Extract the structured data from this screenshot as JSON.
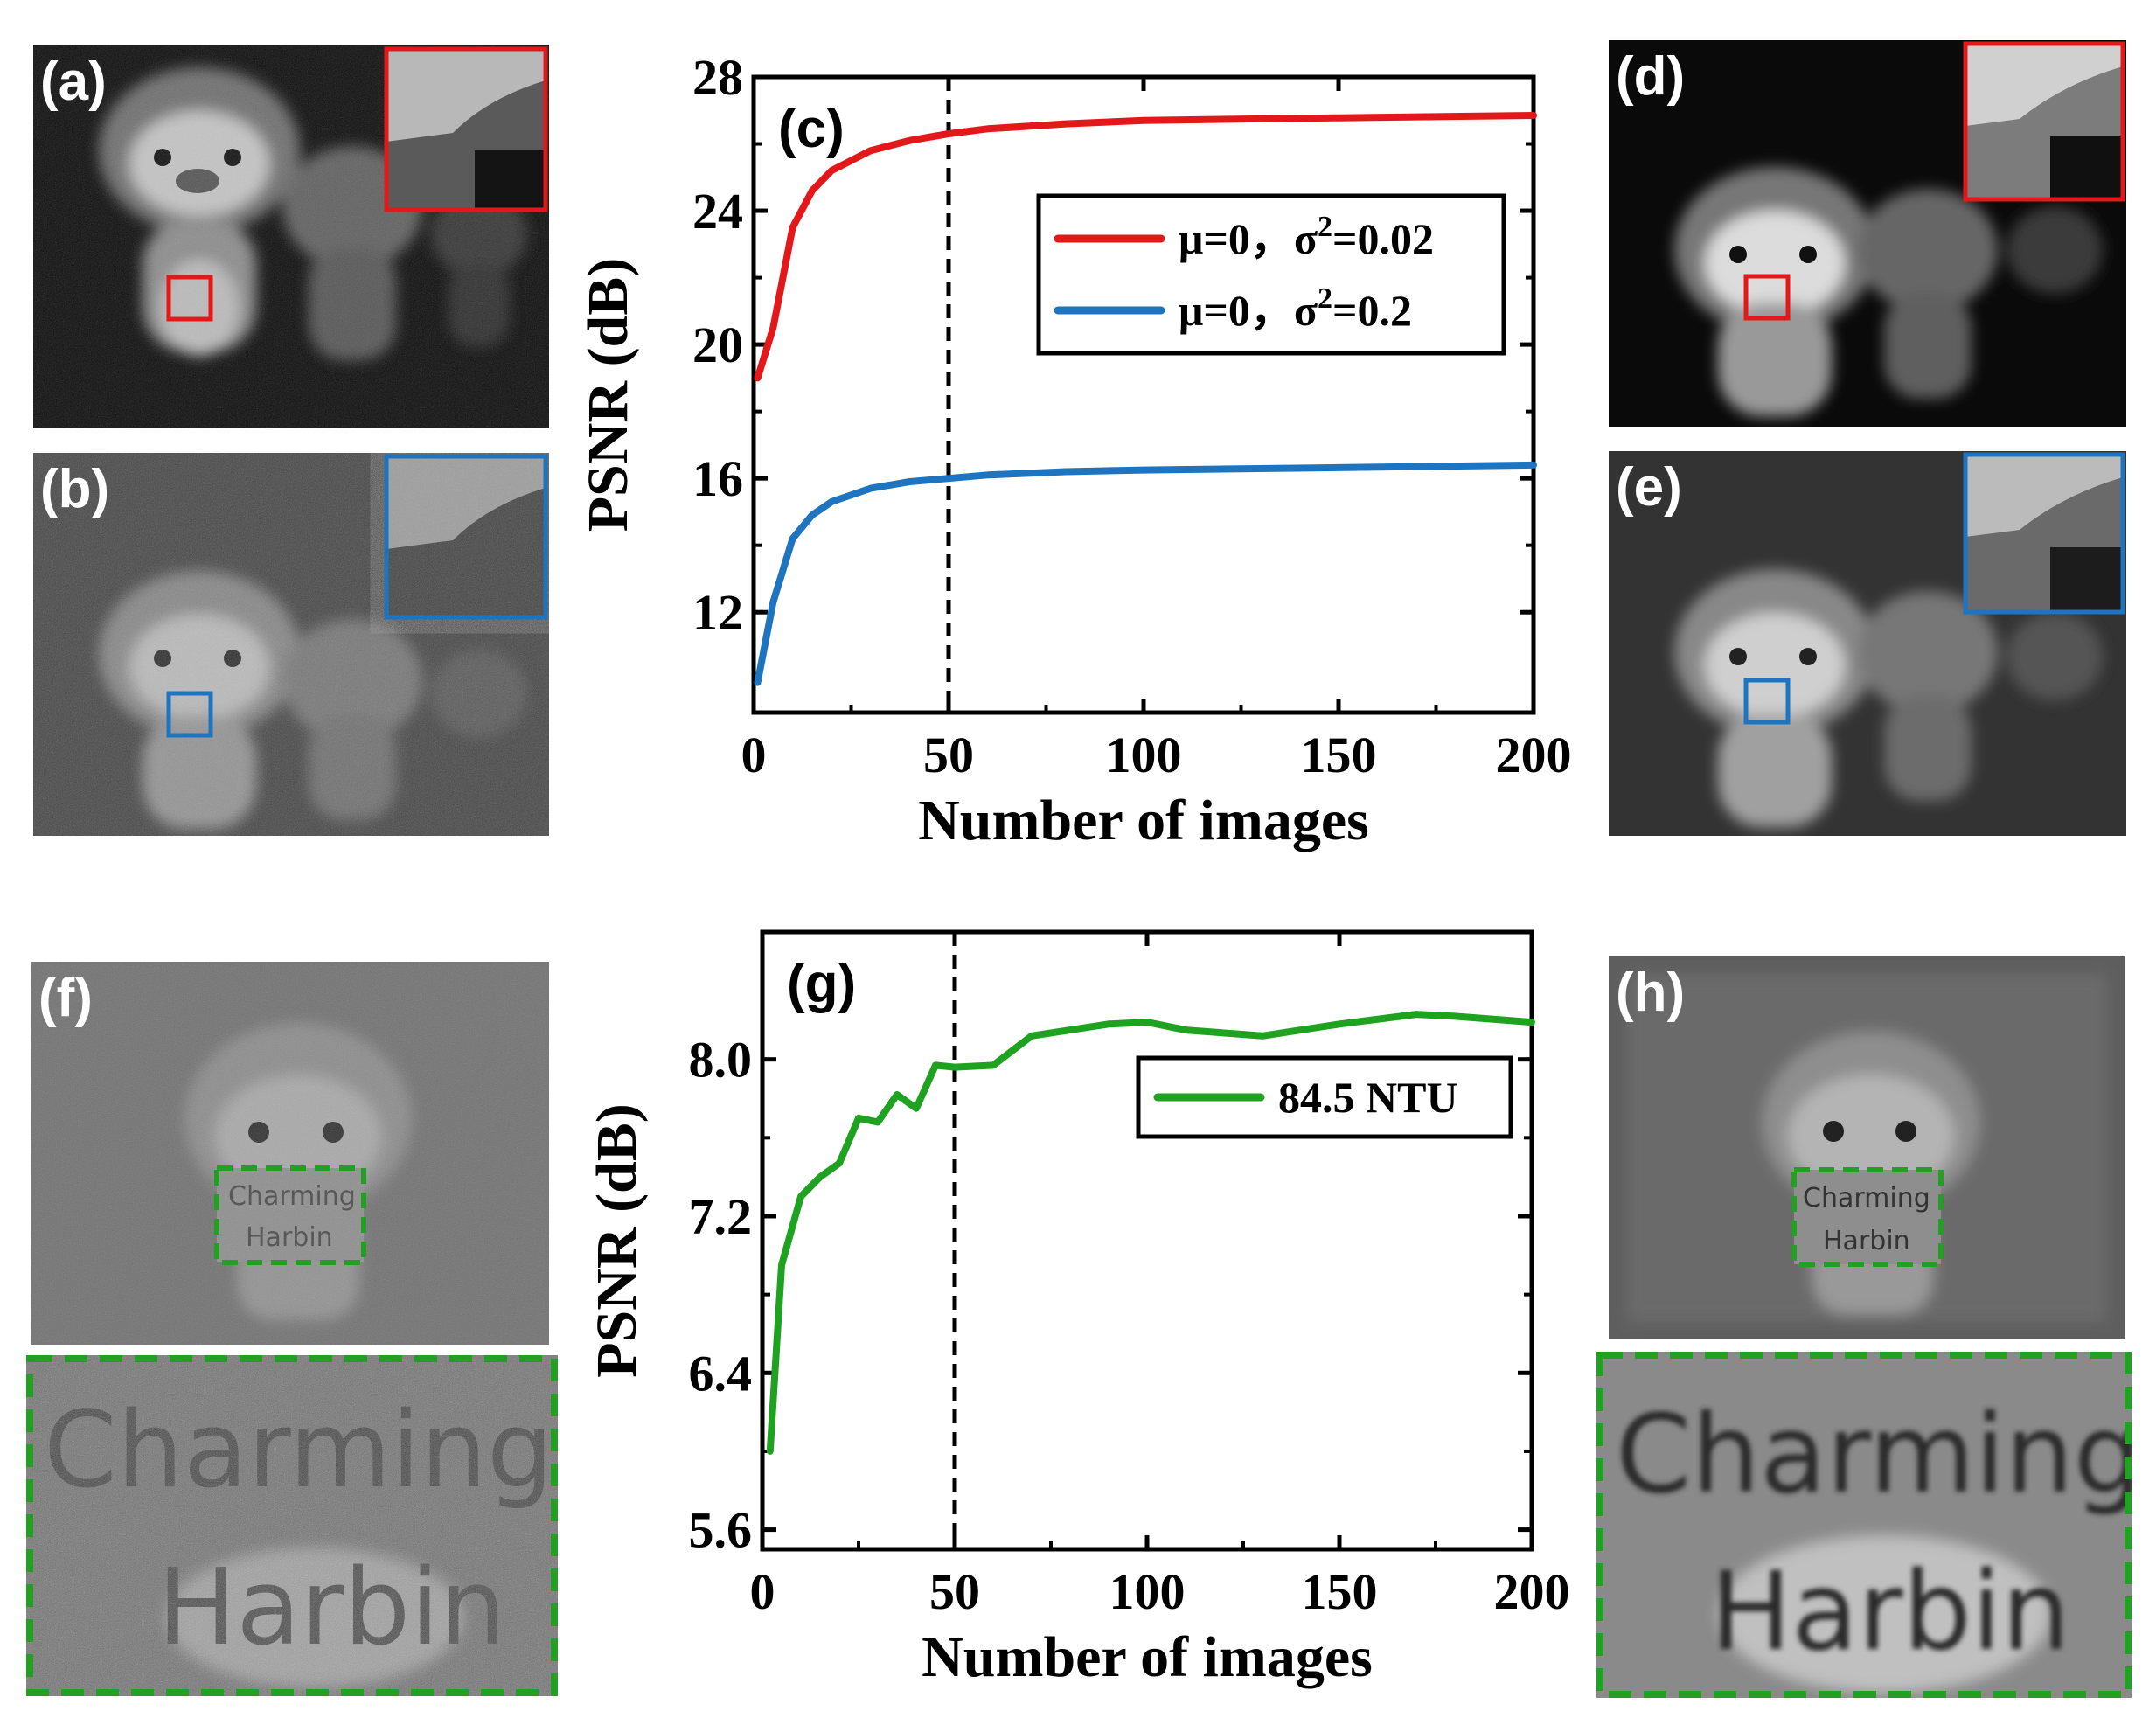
{
  "panels": {
    "a": "(a)",
    "b": "(b)",
    "d": "(d)",
    "e": "(e)",
    "f": "(f)",
    "h": "(h)",
    "sign_line1": "Charming",
    "sign_line2": "Harbin"
  },
  "colors": {
    "red": "#e3181a",
    "blue": "#1f74c0",
    "green": "#1fa21f",
    "zoom_green": "#23a023"
  },
  "chart_data": [
    {
      "type": "line",
      "panel_label": "(c)",
      "xlabel": "Number of images",
      "ylabel": "PSNR (dB)",
      "xlim": [
        0,
        200
      ],
      "ylim": [
        9,
        28
      ],
      "xticks": [
        0,
        50,
        100,
        150,
        200
      ],
      "yticks": [
        12,
        16,
        20,
        24,
        28
      ],
      "vline_x": 50,
      "legend_position": "top-right",
      "series": [
        {
          "name": "μ=0，σ²=0.02",
          "name_prefix": "μ=0，σ",
          "name_sup": "2",
          "name_suffix": "=0.02",
          "color": "#e3181a",
          "x": [
            1,
            5,
            10,
            15,
            20,
            30,
            40,
            50,
            60,
            80,
            100,
            150,
            200
          ],
          "y": [
            19.0,
            20.5,
            23.5,
            24.6,
            25.2,
            25.8,
            26.1,
            26.3,
            26.45,
            26.6,
            26.7,
            26.78,
            26.85
          ]
        },
        {
          "name": "μ=0，σ²=0.2",
          "name_prefix": "μ=0，σ",
          "name_sup": "2",
          "name_suffix": "=0.2",
          "color": "#1f74c0",
          "x": [
            1,
            5,
            10,
            15,
            20,
            30,
            40,
            50,
            60,
            80,
            100,
            150,
            200
          ],
          "y": [
            9.9,
            12.3,
            14.2,
            14.9,
            15.3,
            15.7,
            15.9,
            16.0,
            16.1,
            16.2,
            16.25,
            16.32,
            16.4
          ]
        }
      ]
    },
    {
      "type": "line",
      "panel_label": "(g)",
      "xlabel": "Number of images",
      "ylabel": "PSNR (dB)",
      "xlim": [
        0,
        200
      ],
      "ylim": [
        5.5,
        8.65
      ],
      "xticks": [
        0,
        50,
        100,
        150,
        200
      ],
      "yticks": [
        5.6,
        6.4,
        7.2,
        8.0
      ],
      "ytick_labels": [
        "5.6",
        "6.4",
        "7.2",
        "8.0"
      ],
      "vline_x": 50,
      "legend_position": "top-right",
      "series": [
        {
          "name": "84.5 NTU",
          "color": "#1fa21f",
          "x": [
            2,
            5,
            10,
            15,
            20,
            25,
            30,
            35,
            40,
            45,
            50,
            60,
            70,
            90,
            100,
            110,
            130,
            150,
            170,
            180,
            200
          ],
          "y": [
            6.0,
            6.95,
            7.3,
            7.4,
            7.47,
            7.7,
            7.68,
            7.82,
            7.75,
            7.97,
            7.96,
            7.97,
            8.12,
            8.18,
            8.19,
            8.15,
            8.12,
            8.18,
            8.23,
            8.22,
            8.19
          ]
        }
      ]
    }
  ]
}
